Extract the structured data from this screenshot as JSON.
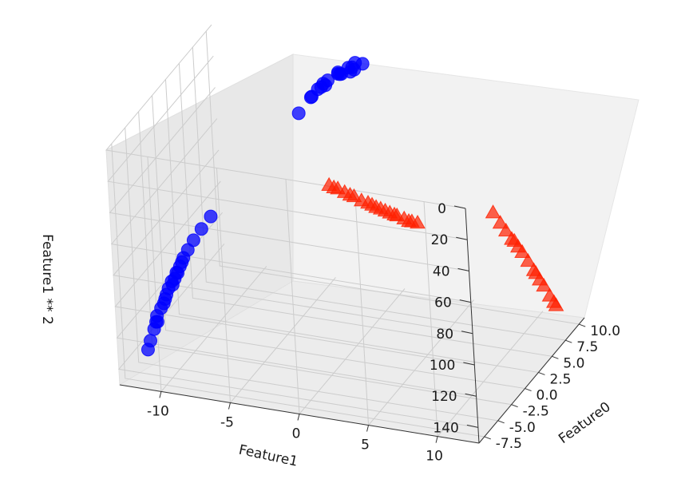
{
  "chart_data": {
    "type": "scatter",
    "projection": "3d",
    "xlabel": "Feature0",
    "ylabel": "Feature1",
    "zlabel": "Feature1 ** 2",
    "zaxis_inverted": true,
    "xlim": [
      -8.5,
      11.0
    ],
    "ylim": [
      -13.0,
      13.0
    ],
    "zlim": [
      0,
      150
    ],
    "xticks": [
      "-7.5",
      "-5.0",
      "-2.5",
      "0.0",
      "2.5",
      "5.0",
      "7.5",
      "10.0"
    ],
    "yticks": [
      "-10",
      "-5",
      "0",
      "5",
      "10"
    ],
    "zticks": [
      "0",
      "20",
      "40",
      "60",
      "80",
      "100",
      "120",
      "140"
    ],
    "grid": true,
    "colors": {
      "class0": "#0000ff",
      "class1": "#ff2000",
      "pane": "#f2f2f2",
      "grid": "#cccccc"
    },
    "series": [
      {
        "marker": "circle",
        "color": "#0000ff",
        "points": [
          [
            -7.8,
            -9.5,
            90.2
          ],
          [
            -7.5,
            -10.5,
            110.3
          ],
          [
            -8.2,
            -8.9,
            79.2
          ],
          [
            -7.0,
            -11.2,
            125.4
          ],
          [
            -7.9,
            -8.2,
            67.2
          ],
          [
            -8.4,
            -7.5,
            56.3
          ],
          [
            -7.4,
            -9.9,
            98.0
          ],
          [
            -8.0,
            -8.6,
            74.0
          ],
          [
            -7.7,
            -10.0,
            100.0
          ],
          [
            -8.3,
            -7.9,
            62.4
          ],
          [
            -7.2,
            -10.8,
            116.6
          ],
          [
            -8.1,
            -9.2,
            84.6
          ],
          [
            -7.6,
            -9.7,
            94.1
          ],
          [
            -8.5,
            -7.0,
            49.0
          ],
          [
            -6.8,
            -11.5,
            132.3
          ],
          [
            -7.3,
            -8.8,
            77.4
          ],
          [
            -8.0,
            -10.2,
            104.0
          ],
          [
            -7.1,
            -9.3,
            86.5
          ],
          [
            -8.2,
            -6.5,
            42.3
          ],
          [
            -7.8,
            -8.4,
            70.6
          ],
          [
            -7.4,
            -9.0,
            81.0
          ],
          [
            -8.6,
            -5.6,
            31.4
          ],
          [
            -7.0,
            -10.6,
            112.4
          ],
          [
            9.5,
            -1.5,
            2.3
          ],
          [
            8.8,
            -2.8,
            7.8
          ],
          [
            9.3,
            -2.2,
            4.8
          ],
          [
            9.9,
            -3.5,
            12.3
          ],
          [
            8.5,
            -2.0,
            4.0
          ],
          [
            9.7,
            -4.2,
            17.6
          ],
          [
            10.3,
            -4.8,
            23.0
          ],
          [
            9.0,
            -3.0,
            9.0
          ],
          [
            9.6,
            -2.6,
            6.8
          ],
          [
            8.3,
            -3.8,
            14.4
          ],
          [
            10.1,
            -2.3,
            5.3
          ],
          [
            9.4,
            -3.3,
            10.9
          ],
          [
            10.4,
            -5.8,
            33.6
          ],
          [
            8.7,
            -1.8,
            3.2
          ],
          [
            9.8,
            -6.5,
            42.3
          ],
          [
            10.5,
            -5.3,
            28.1
          ],
          [
            9.2,
            -4.5,
            20.3
          ],
          [
            8.9,
            -5.1,
            26.0
          ]
        ]
      },
      {
        "marker": "triangle",
        "color": "#ff2000",
        "points": [
          [
            -7.0,
            2.5,
            6.3
          ],
          [
            -6.7,
            3.0,
            9.0
          ],
          [
            -6.3,
            3.7,
            13.7
          ],
          [
            -5.8,
            4.3,
            18.5
          ],
          [
            -5.2,
            4.8,
            23.0
          ],
          [
            -4.7,
            5.2,
            27.0
          ],
          [
            -4.1,
            5.6,
            31.4
          ],
          [
            -3.6,
            5.9,
            34.8
          ],
          [
            -3.1,
            6.2,
            38.4
          ],
          [
            -2.5,
            6.5,
            42.3
          ],
          [
            -6.9,
            2.8,
            7.8
          ],
          [
            -6.1,
            3.9,
            15.2
          ],
          [
            -5.4,
            4.6,
            21.2
          ],
          [
            -4.4,
            5.4,
            29.2
          ],
          [
            -3.8,
            5.8,
            33.6
          ],
          [
            -2.8,
            6.4,
            41.0
          ],
          [
            -2.0,
            6.7,
            44.9
          ],
          [
            -6.5,
            3.4,
            11.6
          ],
          [
            -5.0,
            5.0,
            25.0
          ],
          [
            6.9,
            8.5,
            72.3
          ],
          [
            7.3,
            9.2,
            84.6
          ],
          [
            7.8,
            9.8,
            96.0
          ],
          [
            8.2,
            10.3,
            106.1
          ],
          [
            8.6,
            10.9,
            118.8
          ],
          [
            9.0,
            11.4,
            130.0
          ],
          [
            7.5,
            9.5,
            90.3
          ],
          [
            8.0,
            10.0,
            100.0
          ],
          [
            8.4,
            10.6,
            112.4
          ],
          [
            8.8,
            11.1,
            123.2
          ],
          [
            9.3,
            11.7,
            136.9
          ],
          [
            7.1,
            8.9,
            79.2
          ],
          [
            7.7,
            9.6,
            92.2
          ],
          [
            8.5,
            10.7,
            114.5
          ],
          [
            9.2,
            11.6,
            134.6
          ]
        ]
      }
    ]
  }
}
